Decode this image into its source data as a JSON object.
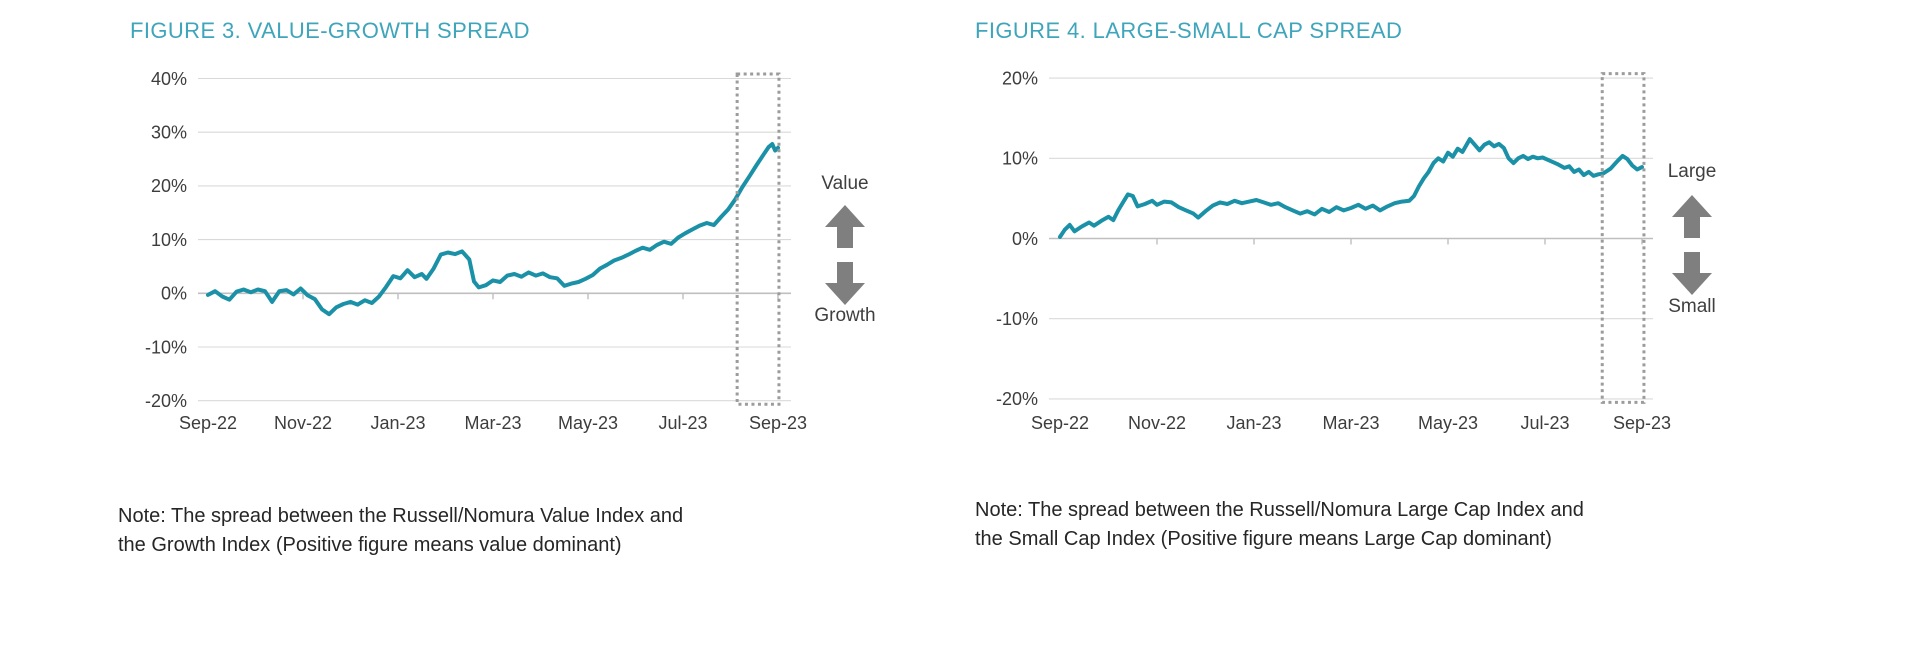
{
  "colors": {
    "title_teal": "#3FA5BB",
    "line_teal": "#1B91A8",
    "gridline": "#D9D9D9",
    "zero_axis": "#BFBFBF",
    "axis_text": "#3D3D3D",
    "note_text": "#262626",
    "arrow_gray": "#7F7F7F",
    "highlight_box_gray": "#9C9C9C",
    "background": "#FFFFFF"
  },
  "chart_data": [
    {
      "type": "line",
      "title": "FIGURE 3. VALUE-GROWTH SPREAD",
      "note": [
        "Note: The spread between the Russell/Nomura Value Index and",
        "the Growth Index (Positive figure means value dominant)"
      ],
      "x_axis": {
        "unit": "months after Sep-2022",
        "tick_positions": [
          0,
          2,
          4,
          6,
          8,
          10,
          12
        ],
        "tick_labels": [
          "Sep-22",
          "Nov-22",
          "Jan-23",
          "Mar-23",
          "May-23",
          "Jul-23",
          "Sep-23"
        ]
      },
      "y_axis": {
        "min": -20,
        "max": 40,
        "tick_values": [
          40,
          30,
          20,
          10,
          0,
          -10,
          -20
        ],
        "tick_labels": [
          "40%",
          "30%",
          "20%",
          "10%",
          "0%",
          "-10%",
          "-20%"
        ]
      },
      "grid": "horizontal",
      "legend": "none",
      "annotations": {
        "above": "Value",
        "below": "Growth"
      },
      "highlight_box_months": [
        11.14,
        12.02
      ],
      "series": [
        {
          "name": "Russell/Nomura Value minus Growth spread (%)",
          "color": "#1B91A8",
          "points": [
            [
              0,
              -0.3
            ],
            [
              0.15,
              0.4
            ],
            [
              0.3,
              -0.6
            ],
            [
              0.45,
              -1.2
            ],
            [
              0.6,
              0.3
            ],
            [
              0.75,
              0.7
            ],
            [
              0.9,
              0.2
            ],
            [
              1.05,
              0.7
            ],
            [
              1.2,
              0.4
            ],
            [
              1.35,
              -1.6
            ],
            [
              1.5,
              0.4
            ],
            [
              1.65,
              0.6
            ],
            [
              1.8,
              -0.2
            ],
            [
              1.95,
              0.9
            ],
            [
              2.1,
              -0.4
            ],
            [
              2.25,
              -1.1
            ],
            [
              2.4,
              -3.0
            ],
            [
              2.55,
              -3.9
            ],
            [
              2.7,
              -2.6
            ],
            [
              2.85,
              -2.0
            ],
            [
              3.0,
              -1.6
            ],
            [
              3.15,
              -2.1
            ],
            [
              3.3,
              -1.3
            ],
            [
              3.45,
              -1.8
            ],
            [
              3.6,
              -0.6
            ],
            [
              3.75,
              1.2
            ],
            [
              3.9,
              3.2
            ],
            [
              4.05,
              2.8
            ],
            [
              4.2,
              4.3
            ],
            [
              4.35,
              3.0
            ],
            [
              4.5,
              3.6
            ],
            [
              4.6,
              2.7
            ],
            [
              4.75,
              4.6
            ],
            [
              4.9,
              7.2
            ],
            [
              5.05,
              7.6
            ],
            [
              5.2,
              7.3
            ],
            [
              5.35,
              7.8
            ],
            [
              5.5,
              6.3
            ],
            [
              5.6,
              2.2
            ],
            [
              5.7,
              1.1
            ],
            [
              5.85,
              1.5
            ],
            [
              6.0,
              2.4
            ],
            [
              6.15,
              2.1
            ],
            [
              6.3,
              3.3
            ],
            [
              6.45,
              3.6
            ],
            [
              6.6,
              3.1
            ],
            [
              6.75,
              3.9
            ],
            [
              6.9,
              3.3
            ],
            [
              7.05,
              3.7
            ],
            [
              7.2,
              3.0
            ],
            [
              7.35,
              2.8
            ],
            [
              7.5,
              1.4
            ],
            [
              7.65,
              1.8
            ],
            [
              7.8,
              2.1
            ],
            [
              7.95,
              2.7
            ],
            [
              8.1,
              3.4
            ],
            [
              8.25,
              4.6
            ],
            [
              8.4,
              5.3
            ],
            [
              8.55,
              6.1
            ],
            [
              8.7,
              6.6
            ],
            [
              8.85,
              7.2
            ],
            [
              9.0,
              7.9
            ],
            [
              9.15,
              8.5
            ],
            [
              9.3,
              8.1
            ],
            [
              9.45,
              9.0
            ],
            [
              9.6,
              9.6
            ],
            [
              9.75,
              9.2
            ],
            [
              9.9,
              10.4
            ],
            [
              10.05,
              11.2
            ],
            [
              10.2,
              11.9
            ],
            [
              10.35,
              12.6
            ],
            [
              10.5,
              13.1
            ],
            [
              10.65,
              12.7
            ],
            [
              10.8,
              14.2
            ],
            [
              10.95,
              15.6
            ],
            [
              11.1,
              17.5
            ],
            [
              11.25,
              19.8
            ],
            [
              11.4,
              21.8
            ],
            [
              11.55,
              23.9
            ],
            [
              11.7,
              25.9
            ],
            [
              11.8,
              27.2
            ],
            [
              11.88,
              27.8
            ],
            [
              11.94,
              26.6
            ],
            [
              12.0,
              27.1
            ]
          ]
        }
      ]
    },
    {
      "type": "line",
      "title": "FIGURE 4. LARGE-SMALL CAP SPREAD",
      "note": [
        "Note: The spread between the Russell/Nomura Large Cap Index and",
        "the Small Cap Index (Positive figure means Large Cap dominant)"
      ],
      "x_axis": {
        "unit": "months after Sep-2022",
        "tick_positions": [
          0,
          2,
          4,
          6,
          8,
          10,
          12
        ],
        "tick_labels": [
          "Sep-22",
          "Nov-22",
          "Jan-23",
          "Mar-23",
          "May-23",
          "Jul-23",
          "Sep-23"
        ]
      },
      "y_axis": {
        "min": -20,
        "max": 20,
        "tick_values": [
          20,
          10,
          0,
          -10,
          -20
        ],
        "tick_labels": [
          "20%",
          "10%",
          "0%",
          "-10%",
          "-20%"
        ]
      },
      "grid": "horizontal",
      "legend": "none",
      "annotations": {
        "above": "Large",
        "below": "Small"
      },
      "highlight_box_months": [
        11.18,
        12.04
      ],
      "series": [
        {
          "name": "Russell/Nomura Large Cap minus Small Cap spread (%)",
          "color": "#1B91A8",
          "points": [
            [
              0,
              0.2
            ],
            [
              0.1,
              1.1
            ],
            [
              0.2,
              1.7
            ],
            [
              0.3,
              0.9
            ],
            [
              0.45,
              1.5
            ],
            [
              0.6,
              2.0
            ],
            [
              0.7,
              1.6
            ],
            [
              0.85,
              2.2
            ],
            [
              1.0,
              2.7
            ],
            [
              1.1,
              2.3
            ],
            [
              1.2,
              3.5
            ],
            [
              1.3,
              4.5
            ],
            [
              1.4,
              5.5
            ],
            [
              1.5,
              5.3
            ],
            [
              1.6,
              4.0
            ],
            [
              1.75,
              4.3
            ],
            [
              1.9,
              4.7
            ],
            [
              2.0,
              4.2
            ],
            [
              2.15,
              4.6
            ],
            [
              2.3,
              4.5
            ],
            [
              2.45,
              3.9
            ],
            [
              2.6,
              3.5
            ],
            [
              2.75,
              3.1
            ],
            [
              2.85,
              2.6
            ],
            [
              3.0,
              3.4
            ],
            [
              3.15,
              4.1
            ],
            [
              3.3,
              4.5
            ],
            [
              3.45,
              4.3
            ],
            [
              3.6,
              4.7
            ],
            [
              3.75,
              4.4
            ],
            [
              3.9,
              4.6
            ],
            [
              4.05,
              4.8
            ],
            [
              4.2,
              4.5
            ],
            [
              4.35,
              4.2
            ],
            [
              4.5,
              4.4
            ],
            [
              4.65,
              3.9
            ],
            [
              4.8,
              3.5
            ],
            [
              4.95,
              3.1
            ],
            [
              5.1,
              3.4
            ],
            [
              5.25,
              3.0
            ],
            [
              5.4,
              3.7
            ],
            [
              5.55,
              3.3
            ],
            [
              5.7,
              3.9
            ],
            [
              5.85,
              3.5
            ],
            [
              6.0,
              3.8
            ],
            [
              6.15,
              4.2
            ],
            [
              6.3,
              3.7
            ],
            [
              6.45,
              4.1
            ],
            [
              6.6,
              3.5
            ],
            [
              6.75,
              4.0
            ],
            [
              6.9,
              4.4
            ],
            [
              7.05,
              4.6
            ],
            [
              7.2,
              4.7
            ],
            [
              7.3,
              5.3
            ],
            [
              7.4,
              6.5
            ],
            [
              7.5,
              7.5
            ],
            [
              7.6,
              8.3
            ],
            [
              7.7,
              9.4
            ],
            [
              7.8,
              10.0
            ],
            [
              7.9,
              9.6
            ],
            [
              8.0,
              10.7
            ],
            [
              8.1,
              10.2
            ],
            [
              8.2,
              11.2
            ],
            [
              8.3,
              10.8
            ],
            [
              8.45,
              12.4
            ],
            [
              8.55,
              11.7
            ],
            [
              8.65,
              11.0
            ],
            [
              8.75,
              11.7
            ],
            [
              8.85,
              12.0
            ],
            [
              8.95,
              11.5
            ],
            [
              9.05,
              11.8
            ],
            [
              9.15,
              11.3
            ],
            [
              9.25,
              10.0
            ],
            [
              9.35,
              9.4
            ],
            [
              9.45,
              10.0
            ],
            [
              9.55,
              10.3
            ],
            [
              9.65,
              9.9
            ],
            [
              9.75,
              10.2
            ],
            [
              9.85,
              10.0
            ],
            [
              9.95,
              10.1
            ],
            [
              10.1,
              9.7
            ],
            [
              10.25,
              9.3
            ],
            [
              10.4,
              8.8
            ],
            [
              10.5,
              9.0
            ],
            [
              10.6,
              8.3
            ],
            [
              10.7,
              8.6
            ],
            [
              10.8,
              7.9
            ],
            [
              10.9,
              8.3
            ],
            [
              11.0,
              7.8
            ],
            [
              11.1,
              8.0
            ],
            [
              11.2,
              8.1
            ],
            [
              11.35,
              8.7
            ],
            [
              11.5,
              9.7
            ],
            [
              11.6,
              10.3
            ],
            [
              11.7,
              9.9
            ],
            [
              11.8,
              9.1
            ],
            [
              11.9,
              8.6
            ],
            [
              12.0,
              8.9
            ]
          ]
        }
      ]
    }
  ]
}
